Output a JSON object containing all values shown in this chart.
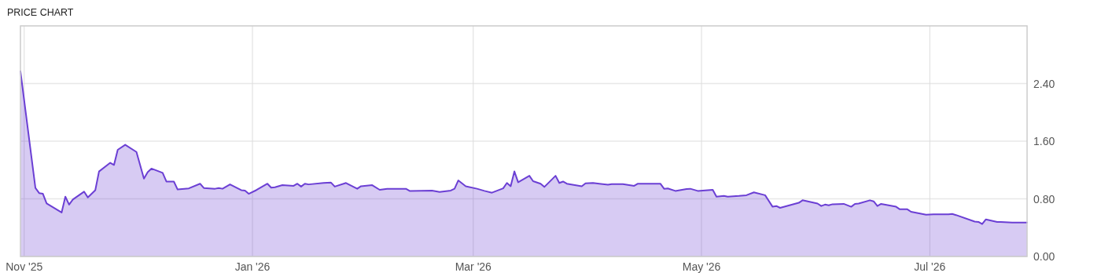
{
  "chart_data": {
    "type": "area",
    "title": "PRICE CHART",
    "x": [
      "2025-10-31",
      "2025-11-04",
      "2025-11-05",
      "2025-11-06",
      "2025-11-07",
      "2025-11-11",
      "2025-11-12",
      "2025-11-13",
      "2025-11-14",
      "2025-11-17",
      "2025-11-18",
      "2025-11-20",
      "2025-11-21",
      "2025-11-24",
      "2025-11-25",
      "2025-11-26",
      "2025-11-28",
      "2025-12-01",
      "2025-12-03",
      "2025-12-04",
      "2025-12-05",
      "2025-12-08",
      "2025-12-09",
      "2025-12-11",
      "2025-12-12",
      "2025-12-15",
      "2025-12-18",
      "2025-12-19",
      "2025-12-22",
      "2025-12-23",
      "2025-12-24",
      "2025-12-26",
      "2025-12-29",
      "2025-12-30",
      "2025-12-31",
      "2026-01-02",
      "2026-01-05",
      "2026-01-06",
      "2026-01-07",
      "2026-01-09",
      "2026-01-12",
      "2026-01-13",
      "2026-01-14",
      "2026-01-15",
      "2026-01-16",
      "2026-01-20",
      "2026-01-22",
      "2026-01-23",
      "2026-01-26",
      "2026-01-29",
      "2026-01-30",
      "2026-02-02",
      "2026-02-04",
      "2026-02-06",
      "2026-02-11",
      "2026-02-12",
      "2026-02-18",
      "2026-02-20",
      "2026-02-23",
      "2026-02-24",
      "2026-02-25",
      "2026-02-27",
      "2026-03-02",
      "2026-03-04",
      "2026-03-06",
      "2026-03-09",
      "2026-03-10",
      "2026-03-11",
      "2026-03-12",
      "2026-03-13",
      "2026-03-16",
      "2026-03-17",
      "2026-03-19",
      "2026-03-20",
      "2026-03-23",
      "2026-03-24",
      "2026-03-25",
      "2026-03-26",
      "2026-03-30",
      "2026-03-31",
      "2026-04-02",
      "2026-04-06",
      "2026-04-07",
      "2026-04-10",
      "2026-04-13",
      "2026-04-14",
      "2026-04-20",
      "2026-04-21",
      "2026-04-22",
      "2026-04-24",
      "2026-04-27",
      "2026-04-28",
      "2026-04-30",
      "2026-05-04",
      "2026-05-05",
      "2026-05-07",
      "2026-05-08",
      "2026-05-11",
      "2026-05-13",
      "2026-05-15",
      "2026-05-18",
      "2026-05-20",
      "2026-05-21",
      "2026-05-22",
      "2026-05-27",
      "2026-05-28",
      "2026-06-01",
      "2026-06-02",
      "2026-06-03",
      "2026-06-04",
      "2026-06-05",
      "2026-06-08",
      "2026-06-10",
      "2026-06-11",
      "2026-06-12",
      "2026-06-15",
      "2026-06-16",
      "2026-06-17",
      "2026-06-18",
      "2026-06-22",
      "2026-06-23",
      "2026-06-25",
      "2026-06-26",
      "2026-06-30",
      "2026-07-02",
      "2026-07-06",
      "2026-07-07",
      "2026-07-08",
      "2026-07-13",
      "2026-07-14",
      "2026-07-15",
      "2026-07-16",
      "2026-07-19",
      "2026-07-20",
      "2026-07-23",
      "2026-07-27"
    ],
    "series": [
      {
        "color": "#6b3fd4",
        "values": [
          2.57,
          0.95,
          0.88,
          0.87,
          0.735,
          0.61,
          0.83,
          0.72,
          0.79,
          0.9,
          0.82,
          0.92,
          1.18,
          1.3,
          1.27,
          1.48,
          1.55,
          1.45,
          1.08,
          1.17,
          1.22,
          1.16,
          1.04,
          1.04,
          0.93,
          0.945,
          1.01,
          0.95,
          0.94,
          0.95,
          0.94,
          1.0,
          0.92,
          0.915,
          0.87,
          0.92,
          1.01,
          0.955,
          0.96,
          0.99,
          0.98,
          1.01,
          0.97,
          1.01,
          1.0,
          1.02,
          1.025,
          0.97,
          1.02,
          0.94,
          0.975,
          0.99,
          0.925,
          0.94,
          0.94,
          0.91,
          0.915,
          0.895,
          0.915,
          0.94,
          1.055,
          0.975,
          0.94,
          0.91,
          0.885,
          0.945,
          1.02,
          0.975,
          1.18,
          1.03,
          1.12,
          1.045,
          1.01,
          0.965,
          1.12,
          1.02,
          1.04,
          1.01,
          0.975,
          1.015,
          1.02,
          0.995,
          1.005,
          1.005,
          0.98,
          1.01,
          1.01,
          0.94,
          0.945,
          0.91,
          0.935,
          0.94,
          0.91,
          0.925,
          0.83,
          0.84,
          0.83,
          0.84,
          0.85,
          0.89,
          0.85,
          0.69,
          0.7,
          0.675,
          0.745,
          0.78,
          0.735,
          0.7,
          0.72,
          0.71,
          0.725,
          0.73,
          0.69,
          0.73,
          0.735,
          0.78,
          0.765,
          0.7,
          0.73,
          0.69,
          0.655,
          0.655,
          0.62,
          0.58,
          0.585,
          0.585,
          0.59,
          0.575,
          0.485,
          0.48,
          0.45,
          0.515,
          0.48,
          0.48,
          0.47,
          0.47
        ]
      }
    ],
    "xlim": [
      "2025-10-31",
      "2026-07-27"
    ],
    "xticks": [
      {
        "value": "2025-11-01",
        "label": "Nov '25"
      },
      {
        "value": "2026-01-01",
        "label": "Jan '26"
      },
      {
        "value": "2026-03-01",
        "label": "Mar '26"
      },
      {
        "value": "2026-05-01",
        "label": "May '26"
      },
      {
        "value": "2026-07-01",
        "label": "Jul '26"
      }
    ],
    "ylim": [
      0,
      3.2
    ],
    "yticks": [
      {
        "value": 0,
        "label": "0.00"
      },
      {
        "value": 0.8,
        "label": "0.80"
      },
      {
        "value": 1.6,
        "label": "1.60"
      },
      {
        "value": 2.4,
        "label": "2.40"
      }
    ],
    "grid": true
  }
}
